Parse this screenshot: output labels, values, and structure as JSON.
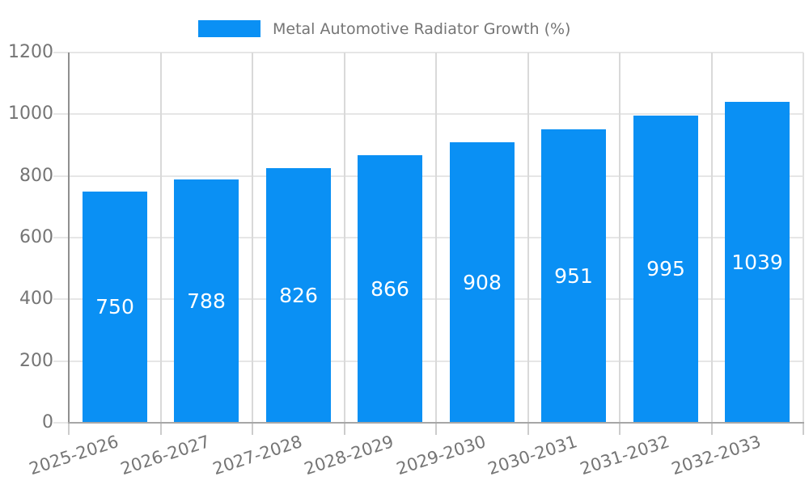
{
  "legend": {
    "label": "Metal Automotive Radiator Growth (%)"
  },
  "chart_data": {
    "type": "bar",
    "title": "Metal Automotive Radiator Growth (%)",
    "categories": [
      "2025-2026",
      "2026-2027",
      "2027-2028",
      "2028-2029",
      "2029-2030",
      "2030-2031",
      "2031-2032",
      "2032-2033"
    ],
    "values": [
      750,
      788,
      826,
      866,
      908,
      951,
      995,
      1039
    ],
    "xlabel": "",
    "ylabel": "",
    "ylim": [
      0,
      1200
    ],
    "yticks": [
      0,
      200,
      400,
      600,
      800,
      1000,
      1200
    ],
    "grid": true,
    "legend_position": "top-center",
    "bar_color": "#0a90f4",
    "value_label_color": "#ffffff",
    "axis_text_color": "#757575"
  }
}
